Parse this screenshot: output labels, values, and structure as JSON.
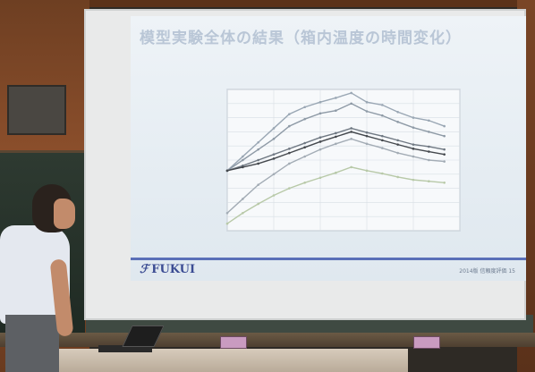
{
  "slide": {
    "title": "模型実験全体の結果（箱内温度の時間変化）",
    "logo_text": "FUKUI",
    "page_label": "2014版  信頼度評価  15"
  },
  "chart_data": {
    "type": "line",
    "x": [
      0,
      2,
      4,
      6,
      8,
      10,
      12,
      14,
      16,
      18,
      20,
      22,
      24,
      26,
      28
    ],
    "xlim": [
      0,
      30
    ],
    "ylim": [
      22,
      42
    ],
    "series": [
      {
        "values": [
          30.5,
          32.5,
          34.5,
          36.5,
          38.5,
          39.5,
          40.2,
          40.8,
          41.5,
          40.2,
          39.8,
          38.8,
          38.0,
          37.6,
          36.8
        ]
      },
      {
        "values": [
          30.5,
          32.0,
          33.5,
          35.0,
          36.8,
          37.8,
          38.6,
          39.0,
          40.0,
          38.9,
          38.3,
          37.4,
          36.6,
          36.0,
          35.4
        ]
      },
      {
        "values": [
          30.5,
          31.2,
          32.0,
          32.8,
          33.6,
          34.4,
          35.2,
          35.8,
          36.5,
          35.9,
          35.4,
          34.8,
          34.2,
          33.9,
          33.5
        ]
      },
      {
        "values": [
          30.5,
          31.0,
          31.5,
          32.2,
          33.0,
          33.8,
          34.6,
          35.3,
          36.0,
          35.4,
          34.8,
          34.2,
          33.6,
          33.2,
          32.8
        ]
      },
      {
        "values": [
          24.5,
          26.5,
          28.5,
          30.0,
          31.5,
          32.5,
          33.5,
          34.3,
          35.0,
          34.3,
          33.7,
          33.0,
          32.5,
          32.0,
          31.8
        ]
      },
      {
        "values": [
          23.0,
          24.5,
          25.8,
          27.0,
          28.0,
          28.8,
          29.5,
          30.2,
          31.0,
          30.5,
          30.1,
          29.6,
          29.2,
          29.0,
          28.8
        ]
      }
    ],
    "series_colors": [
      "#9aa7b4",
      "#8e9aa6",
      "#6f7882",
      "#44484d",
      "#a3acb5",
      "#b8c9a8"
    ],
    "grid": true
  }
}
